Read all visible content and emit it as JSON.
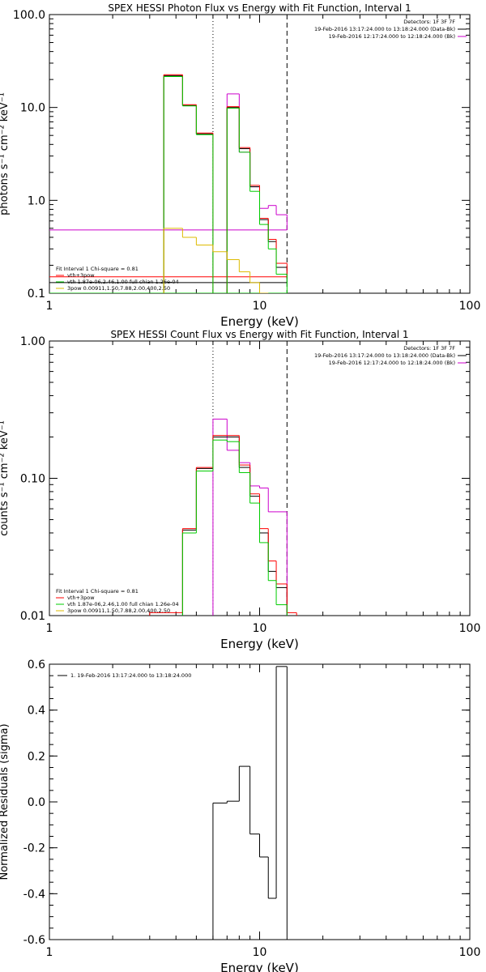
{
  "chart_data": [
    {
      "type": "line",
      "title": "SPEX HESSI Photon Flux vs Energy with Fit Function, Interval 1",
      "xlabel": "Energy (keV)",
      "ylabel": "photons s⁻¹ cm⁻² keV⁻¹",
      "xscale": "log",
      "yscale": "log",
      "xlim": [
        1,
        100
      ],
      "ylim": [
        0.1,
        100
      ],
      "xticks": [
        {
          "v": 1,
          "label": "1"
        },
        {
          "v": 10,
          "label": "10"
        },
        {
          "v": 100,
          "label": "100"
        }
      ],
      "yticks": [
        {
          "v": 0.1,
          "label": "0.1"
        },
        {
          "v": 1,
          "label": "1.0"
        },
        {
          "v": 10,
          "label": "10.0"
        },
        {
          "v": 100,
          "label": "100.0"
        }
      ],
      "vlines": [
        {
          "x": 6.0,
          "style": "dotted"
        },
        {
          "x": 13.5,
          "style": "dashed"
        }
      ],
      "legend_top": [
        "Detectors: 1F 3F 7F",
        "19-Feb-2016 13:17:24.000 to 13:18:24.000 (Data-Bk)",
        "19-Feb-2016 12:17:24.000 to 12:18:24.000 (Bk)"
      ],
      "legend_top_colors": [
        "",
        "#000000",
        "#cc00cc"
      ],
      "legend_bottom": [
        "Fit Interval 1   Chi-square = 0.81",
        "vth+3pow",
        "vth 1.87e-06,2.46,1.00  full chian 1.26e-04",
        "3pow 0.00911,1.50,7.88,2.00,400,2.50"
      ],
      "legend_bottom_colors": [
        "",
        "#ff0000",
        "#00cc00",
        "#ddbb00"
      ],
      "edges": [
        3.5,
        4.3,
        5.0,
        6.0,
        7.0,
        8.0,
        9.0,
        10.0,
        11.0,
        12.0,
        13.5
      ],
      "series": [
        {
          "color": "#cc00cc",
          "values": [
            null,
            null,
            null,
            null,
            14.0,
            3.3,
            1.4,
            0.82,
            0.88,
            0.7,
            0.48
          ]
        },
        {
          "color": "#000000",
          "values": [
            22.0,
            10.5,
            5.2,
            null,
            10.0,
            3.6,
            1.4,
            0.62,
            0.36,
            0.19,
            0.13
          ]
        },
        {
          "color": "#ff0000",
          "values": [
            22.5,
            10.7,
            5.3,
            null,
            10.2,
            3.7,
            1.45,
            0.64,
            0.38,
            0.21,
            0.15
          ]
        },
        {
          "color": "#00cc00",
          "values": [
            21.5,
            10.4,
            5.1,
            null,
            9.8,
            3.3,
            1.25,
            0.55,
            0.3,
            0.16,
            0.1
          ]
        },
        {
          "color": "#ddbb00",
          "values": [
            0.5,
            0.4,
            0.33,
            0.28,
            0.23,
            0.17,
            0.13,
            0.1,
            null,
            null,
            null
          ]
        }
      ]
    },
    {
      "type": "line",
      "title": "SPEX HESSI Count Flux vs Energy with Fit Function, Interval 1",
      "xlabel": "Energy (keV)",
      "ylabel": "counts s⁻¹ cm⁻² keV⁻¹",
      "xscale": "log",
      "yscale": "log",
      "xlim": [
        1,
        100
      ],
      "ylim": [
        0.01,
        1
      ],
      "xticks": [
        {
          "v": 1,
          "label": "1"
        },
        {
          "v": 10,
          "label": "10"
        },
        {
          "v": 100,
          "label": "100"
        }
      ],
      "yticks": [
        {
          "v": 0.01,
          "label": "0.01"
        },
        {
          "v": 0.1,
          "label": "0.10"
        },
        {
          "v": 1,
          "label": "1.00"
        }
      ],
      "vlines": [
        {
          "x": 6.0,
          "style": "dotted"
        },
        {
          "x": 13.5,
          "style": "dashed"
        }
      ],
      "legend_top": [
        "Detectors: 1F 3F 7F",
        "19-Feb-2016 13:17:24.000 to 13:18:24.000 (Data-Bk)",
        "19-Feb-2016 12:17:24.000 to 12:18:24.000 (Bk)"
      ],
      "legend_top_colors": [
        "",
        "#000000",
        "#cc00cc"
      ],
      "legend_bottom": [
        "Fit Interval 1   Chi-square = 0.81",
        "vth+3pow",
        "vth 1.87e-06,2.46,1.00  full chian 1.26e-04",
        "3pow 0.00911,1.50,7.88,2.00,400,2.50"
      ],
      "legend_bottom_colors": [
        "",
        "#ff0000",
        "#00cc00",
        "#ddbb00"
      ],
      "edges": [
        3.0,
        3.5,
        4.3,
        5.0,
        6.0,
        7.0,
        8.0,
        9.0,
        10.0,
        11.0,
        12.0,
        13.5,
        15.0
      ],
      "series": [
        {
          "color": "#cc00cc",
          "values": [
            null,
            null,
            null,
            null,
            0.27,
            0.16,
            0.13,
            0.088,
            0.085,
            0.057,
            0.057,
            null
          ]
        },
        {
          "color": "#000000",
          "values": [
            null,
            null,
            0.042,
            0.118,
            0.2,
            0.2,
            0.12,
            0.074,
            0.04,
            0.021,
            0.016,
            null
          ]
        },
        {
          "color": "#ff0000",
          "values": [
            0.0105,
            0.0105,
            0.043,
            0.12,
            0.205,
            0.205,
            0.125,
            0.077,
            0.043,
            0.025,
            0.017,
            0.0105
          ]
        },
        {
          "color": "#00cc00",
          "values": [
            null,
            null,
            0.04,
            0.113,
            0.19,
            0.185,
            0.11,
            0.066,
            0.034,
            0.018,
            0.012,
            null
          ]
        }
      ]
    },
    {
      "type": "line",
      "title": "",
      "xlabel": "Energy (keV)",
      "ylabel": "Normalized Residuals (sigma)",
      "xscale": "log",
      "yscale": "linear",
      "xlim": [
        1,
        100
      ],
      "ylim": [
        -0.6,
        0.6
      ],
      "xticks": [
        {
          "v": 1,
          "label": "1"
        },
        {
          "v": 10,
          "label": "10"
        },
        {
          "v": 100,
          "label": "100"
        }
      ],
      "yticks": [
        {
          "v": -0.6,
          "label": "-0.6"
        },
        {
          "v": -0.4,
          "label": "-0.4"
        },
        {
          "v": -0.2,
          "label": "-0.2"
        },
        {
          "v": 0,
          "label": "0.0"
        },
        {
          "v": 0.2,
          "label": "0.2"
        },
        {
          "v": 0.4,
          "label": "0.4"
        },
        {
          "v": 0.6,
          "label": "0.6"
        }
      ],
      "vlines": [],
      "legend_top": [],
      "legend_top_colors": [],
      "legend_bottom": [],
      "legend_bottom_colors": [],
      "legend_line": "1. 19-Feb-2016 13:17:24.000 to 13:18:24.000",
      "edges": [
        6.0,
        7.0,
        8.0,
        9.0,
        10.0,
        11.0,
        12.0,
        13.5
      ],
      "series": [
        {
          "color": "#000000",
          "values": [
            -0.005,
            0.003,
            0.155,
            -0.14,
            -0.24,
            -0.42,
            0.59
          ]
        }
      ]
    }
  ]
}
